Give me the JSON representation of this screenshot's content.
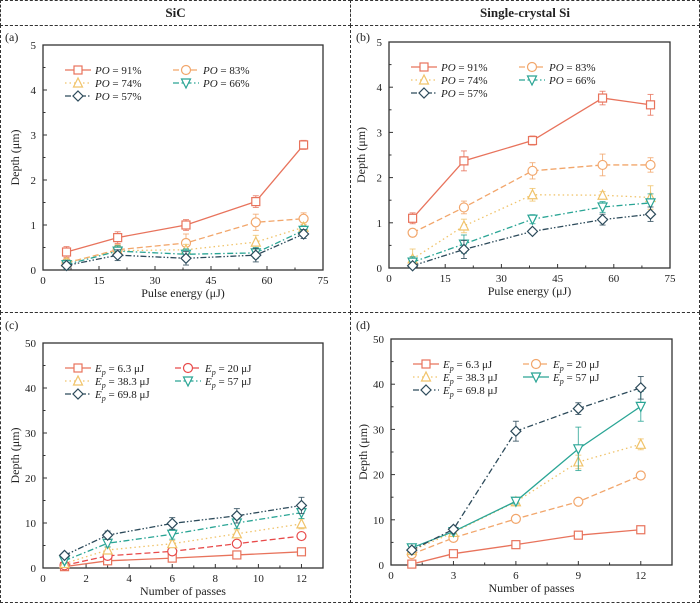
{
  "headers": {
    "left": "SiC",
    "right": "Single-crystal Si"
  },
  "colors": {
    "s1": "#e8735c",
    "s2_orange": "#f2a66b",
    "s2_red": "#e84a4a",
    "s3": "#f0c36a",
    "s4": "#2aa595",
    "s5": "#2c4a5a"
  },
  "chart_data": [
    {
      "id": "a",
      "panel_label": "(a)",
      "type": "line",
      "title": "SiC",
      "xlabel": "Pulse energy (μJ)",
      "ylabel": "Depth (μm)",
      "xlim": [
        0,
        75
      ],
      "ylim": [
        0,
        5
      ],
      "xticks": [
        0,
        15,
        30,
        45,
        60,
        75
      ],
      "yticks": [
        0,
        1,
        2,
        3,
        4,
        5
      ],
      "legend_location": "top-left",
      "x": [
        6.3,
        20,
        38.3,
        57,
        69.8
      ],
      "series": [
        {
          "name": "PO = 91%",
          "label_prefix": "PO",
          "label_value": " = 91%",
          "marker": "square",
          "dash": "solid",
          "color": "#e8735c",
          "values": [
            0.4,
            0.72,
            1.0,
            1.52,
            2.78
          ],
          "errors": [
            0.12,
            0.13,
            0.12,
            0.13,
            0.1
          ]
        },
        {
          "name": "PO = 83%",
          "label_prefix": "PO",
          "label_value": " = 83%",
          "marker": "circle",
          "dash": "dash",
          "color": "#f2a66b",
          "values": [
            0.16,
            0.45,
            0.6,
            1.06,
            1.14
          ],
          "errors": [
            0.1,
            0.12,
            0.2,
            0.18,
            0.13
          ]
        },
        {
          "name": "PO = 74%",
          "label_prefix": "PO",
          "label_value": " = 74%",
          "marker": "triangle",
          "dash": "dot",
          "color": "#f0c36a",
          "values": [
            0.17,
            0.43,
            0.45,
            0.62,
            0.95
          ],
          "errors": [
            0.08,
            0.12,
            0.12,
            0.15,
            0.1
          ]
        },
        {
          "name": "PO = 66%",
          "label_prefix": "PO",
          "label_value": " = 66%",
          "marker": "triangle-down",
          "dash": "dashdot",
          "color": "#2aa595",
          "values": [
            0.12,
            0.42,
            0.35,
            0.38,
            0.88
          ],
          "errors": [
            0.1,
            0.12,
            0.12,
            0.12,
            0.1
          ]
        },
        {
          "name": "PO = 57%",
          "label_prefix": "PO",
          "label_value": " = 57%",
          "marker": "diamond",
          "dash": "dashdotdot",
          "color": "#2c4a5a",
          "values": [
            0.1,
            0.33,
            0.26,
            0.33,
            0.8
          ],
          "errors": [
            0.06,
            0.12,
            0.15,
            0.15,
            0.1
          ]
        }
      ]
    },
    {
      "id": "b",
      "panel_label": "(b)",
      "type": "line",
      "title": "Single-crystal Si",
      "xlabel": "Pulse energy (μJ)",
      "ylabel": "Depth (μm)",
      "xlim": [
        0,
        75
      ],
      "ylim": [
        0,
        5
      ],
      "xticks": [
        0,
        15,
        30,
        45,
        60,
        75
      ],
      "yticks": [
        0,
        1,
        2,
        3,
        4,
        5
      ],
      "legend_location": "top-left",
      "x": [
        6.3,
        20,
        38.3,
        57,
        69.8
      ],
      "series": [
        {
          "name": "PO = 91%",
          "label_prefix": "PO",
          "label_value": " = 91%",
          "marker": "square",
          "dash": "solid",
          "color": "#e8735c",
          "values": [
            1.1,
            2.37,
            2.82,
            3.76,
            3.61
          ],
          "errors": [
            0.12,
            0.22,
            0.1,
            0.15,
            0.23
          ]
        },
        {
          "name": "PO = 83%",
          "label_prefix": "PO",
          "label_value": " = 83%",
          "marker": "circle",
          "dash": "dash",
          "color": "#f2a66b",
          "values": [
            0.78,
            1.34,
            2.15,
            2.28,
            2.28
          ],
          "errors": [
            0.08,
            0.14,
            0.18,
            0.24,
            0.16
          ]
        },
        {
          "name": "PO = 74%",
          "label_prefix": "PO",
          "label_value": " = 74%",
          "marker": "triangle",
          "dash": "dot",
          "color": "#f0c36a",
          "values": [
            0.2,
            0.93,
            1.62,
            1.61,
            1.56
          ],
          "errors": [
            0.22,
            0.15,
            0.14,
            0.08,
            0.26
          ]
        },
        {
          "name": "PO = 66%",
          "label_prefix": "PO",
          "label_value": " = 66%",
          "marker": "triangle-down",
          "dash": "dashdot",
          "color": "#2aa595",
          "values": [
            0.13,
            0.53,
            1.08,
            1.35,
            1.44
          ],
          "errors": [
            0.12,
            0.2,
            0.1,
            0.12,
            0.2
          ]
        },
        {
          "name": "PO = 57%",
          "label_prefix": "PO",
          "label_value": " = 57%",
          "marker": "diamond",
          "dash": "dashdotdot",
          "color": "#2c4a5a",
          "values": [
            0.05,
            0.41,
            0.81,
            1.07,
            1.19
          ],
          "errors": [
            0.04,
            0.2,
            0.06,
            0.12,
            0.16
          ]
        }
      ]
    },
    {
      "id": "c",
      "panel_label": "(c)",
      "type": "line",
      "title": "SiC",
      "xlabel": "Number of passes",
      "ylabel": "Depth (μm)",
      "xlim": [
        0,
        13
      ],
      "ylim": [
        0,
        50
      ],
      "xticks": [
        0,
        2,
        4,
        6,
        8,
        10,
        12
      ],
      "yticks": [
        0,
        10,
        20,
        30,
        40,
        50
      ],
      "legend_location": "top-left",
      "x": [
        1,
        3,
        6,
        9,
        12
      ],
      "series": [
        {
          "name": "Ep = 6.3 μJ",
          "label_prefix": "E",
          "label_sub": "p",
          "label_value": " = 6.3 μJ",
          "marker": "square",
          "dash": "solid",
          "color": "#e8735c",
          "values": [
            0.3,
            1.6,
            2.2,
            2.9,
            3.6
          ],
          "errors": [
            0.2,
            0.4,
            0.4,
            0.4,
            0.4
          ]
        },
        {
          "name": "Ep = 20 μJ",
          "label_prefix": "E",
          "label_sub": "p",
          "label_value": " = 20 μJ",
          "marker": "circle",
          "dash": "dash",
          "color": "#e84a4a",
          "values": [
            0.6,
            2.7,
            3.7,
            5.4,
            7.1
          ],
          "errors": [
            0.3,
            0.5,
            0.6,
            0.6,
            0.6
          ]
        },
        {
          "name": "Ep = 38.3 μJ",
          "label_prefix": "E",
          "label_sub": "p",
          "label_value": " = 38.3 μJ",
          "marker": "triangle",
          "dash": "dot",
          "color": "#f0c36a",
          "values": [
            1.0,
            4.0,
            5.4,
            7.6,
            9.8
          ],
          "errors": [
            0.4,
            0.6,
            0.7,
            0.9,
            1.1
          ]
        },
        {
          "name": "Ep = 57 μJ",
          "label_prefix": "E",
          "label_sub": "p",
          "label_value": " = 57 μJ",
          "marker": "triangle-down",
          "dash": "dashdot",
          "color": "#2aa595",
          "values": [
            1.6,
            5.5,
            7.5,
            10.0,
            12.3
          ],
          "errors": [
            0.5,
            0.8,
            1.1,
            1.2,
            1.3
          ]
        },
        {
          "name": "Ep = 69.8 μJ",
          "label_prefix": "E",
          "label_sub": "p",
          "label_value": " = 69.8 μJ",
          "marker": "diamond",
          "dash": "dashdotdot",
          "color": "#2c4a5a",
          "values": [
            2.8,
            7.3,
            9.9,
            11.6,
            13.9
          ],
          "errors": [
            0.5,
            0.9,
            1.3,
            1.6,
            1.8
          ]
        }
      ]
    },
    {
      "id": "d",
      "panel_label": "(d)",
      "type": "line",
      "title": "Single-crystal Si",
      "xlabel": "Number of passes",
      "ylabel": "Depth (μm)",
      "xlim": [
        0,
        13.5
      ],
      "ylim": [
        0,
        50
      ],
      "xticks": [
        0,
        3,
        6,
        9,
        12
      ],
      "yticks": [
        0,
        10,
        20,
        30,
        40,
        50
      ],
      "legend_location": "top-left",
      "x": [
        1,
        3,
        6,
        9,
        12
      ],
      "series": [
        {
          "name": "Ep = 6.3 μJ",
          "label_prefix": "E",
          "label_sub": "p",
          "label_value": " = 6.3 μJ",
          "marker": "square",
          "dash": "solid",
          "color": "#e8735c",
          "values": [
            0.2,
            2.5,
            4.5,
            6.6,
            7.8
          ],
          "errors": [
            0.1,
            0.3,
            0.3,
            0.4,
            0.4
          ]
        },
        {
          "name": "Ep = 20 μJ",
          "label_prefix": "E",
          "label_sub": "p",
          "label_value": " = 20 μJ",
          "marker": "circle",
          "dash": "dash",
          "color": "#f2a66b",
          "values": [
            2.4,
            6.0,
            10.2,
            14.0,
            19.8
          ],
          "errors": [
            0.3,
            0.4,
            0.5,
            0.6,
            0.6
          ]
        },
        {
          "name": "Ep = 38.3 μJ",
          "label_prefix": "E",
          "label_sub": "p",
          "label_value": " = 38.3 μJ",
          "marker": "triangle",
          "dash": "dot",
          "color": "#f0c36a",
          "values": [
            3.2,
            7.2,
            14.0,
            22.8,
            26.7
          ],
          "errors": [
            0.4,
            0.5,
            0.6,
            1.5,
            1.2
          ]
        },
        {
          "name": "Ep = 57 μJ",
          "label_prefix": "E",
          "label_sub": "p",
          "label_value": " = 57 μJ",
          "marker": "triangle-down",
          "dash": "solid",
          "color": "#2aa595",
          "values": [
            3.8,
            7.4,
            14.1,
            25.7,
            35.1
          ],
          "errors": [
            0.4,
            0.5,
            0.6,
            4.8,
            3.3
          ]
        },
        {
          "name": "Ep = 69.8 μJ",
          "label_prefix": "E",
          "label_sub": "p",
          "label_value": " = 69.8 μJ",
          "marker": "diamond",
          "dash": "dashdot",
          "color": "#2c4a5a",
          "values": [
            3.3,
            7.9,
            29.6,
            34.6,
            39.2
          ],
          "errors": [
            0.4,
            0.6,
            2.2,
            1.3,
            2.5
          ]
        }
      ]
    }
  ]
}
